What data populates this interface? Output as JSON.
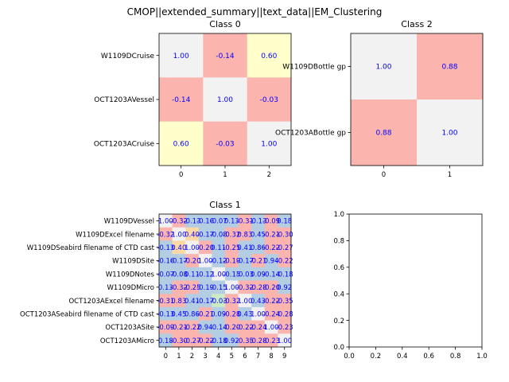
{
  "figure": {
    "suptitle": "CMOP||extended_summary||text_data||EM_Clustering"
  },
  "palette": {
    "diag": "#f2f2f2",
    "cells": {
      "B": "#b3cde3",
      "P": "#fbb4ae",
      "Y": "#ffffcc",
      "G": "#ccebc5",
      "O": "#fed9a6",
      "D": "#f2f2f2"
    },
    "value_text": "#0000ff",
    "axis": "#000000"
  },
  "chart_data": [
    {
      "type": "heatmap",
      "title": "Class 0",
      "rows": [
        "W1109DCruise",
        "OCT1203AVessel",
        "OCT1203ACruise"
      ],
      "x_ticks": [
        "0",
        "1",
        "2"
      ],
      "values": [
        [
          "1.00",
          "-0.14",
          "0.60"
        ],
        [
          "-0.14",
          "1.00",
          "-0.03"
        ],
        [
          "0.60",
          "-0.03",
          "1.00"
        ]
      ],
      "colors": [
        [
          "D",
          "P",
          "Y"
        ],
        [
          "P",
          "D",
          "P"
        ],
        [
          "Y",
          "P",
          "D"
        ]
      ]
    },
    {
      "type": "heatmap",
      "title": "Class 2",
      "rows": [
        "W1109DBottle gp",
        "OCT1203ABottle gp"
      ],
      "x_ticks": [
        "0",
        "1"
      ],
      "values": [
        [
          "1.00",
          "0.88"
        ],
        [
          "0.88",
          "1.00"
        ]
      ],
      "colors": [
        [
          "D",
          "P"
        ],
        [
          "P",
          "D"
        ]
      ]
    },
    {
      "type": "heatmap",
      "title": "Class 1",
      "rows": [
        "W1109DVessel",
        "W1109DExcel filename",
        "W1109DSeabird filename of CTD cast",
        "W1109DSite",
        "W1109DNotes",
        "W1109DMicro",
        "OCT1203AExcel filename",
        "OCT1203ASeabird filename of CTD cast",
        "OCT1203ASite",
        "OCT1203AMicro"
      ],
      "x_ticks": [
        "0",
        "1",
        "2",
        "3",
        "4",
        "5",
        "6",
        "7",
        "8",
        "9"
      ],
      "values": [
        [
          "1.00",
          "-0.32",
          "-0.13",
          "-0.16",
          "-0.07",
          "0.13",
          "-0.31",
          "-0.13",
          "-0.09",
          "0.18"
        ],
        [
          "-0.32",
          "1.00",
          "0.40",
          "-0.17",
          "-0.08",
          "-0.32",
          "0.83",
          "0.45",
          "-0.21",
          "-0.30"
        ],
        [
          "-0.13",
          "0.40",
          "1.00",
          "-0.20",
          "0.11",
          "-0.25",
          "0.41",
          "0.86",
          "-0.22",
          "-0.27"
        ],
        [
          "-0.16",
          "-0.17",
          "-0.20",
          "1.00",
          "-0.12",
          "-0.19",
          "-0.17",
          "-0.21",
          "0.94",
          "-0.22"
        ],
        [
          "-0.07",
          "-0.08",
          "0.11",
          "-0.12",
          "1.00",
          "-0.15",
          "-0.03",
          "0.09",
          "-0.14",
          "-0.18"
        ],
        [
          "0.13",
          "-0.32",
          "-0.25",
          "-0.19",
          "-0.15",
          "1.00",
          "-0.32",
          "-0.28",
          "-0.20",
          "0.92"
        ],
        [
          "-0.31",
          "0.83",
          "0.41",
          "-0.17",
          "-0.03",
          "-0.32",
          "1.00",
          "0.43",
          "-0.22",
          "-0.35"
        ],
        [
          "-0.13",
          "0.45",
          "0.86",
          "-0.21",
          "0.09",
          "-0.28",
          "0.43",
          "1.00",
          "-0.24",
          "-0.28"
        ],
        [
          "-0.09",
          "-0.21",
          "-0.22",
          "0.94",
          "-0.14",
          "-0.20",
          "-0.22",
          "-0.24",
          "1.00",
          "-0.23"
        ],
        [
          "0.18",
          "-0.30",
          "-0.27",
          "-0.22",
          "-0.18",
          "0.92",
          "-0.35",
          "-0.28",
          "-0.23",
          "1.00"
        ]
      ],
      "colors": [
        [
          "D",
          "P",
          "B",
          "B",
          "B",
          "B",
          "P",
          "B",
          "P",
          "B"
        ],
        [
          "P",
          "D",
          "O",
          "B",
          "B",
          "P",
          "P",
          "B",
          "P",
          "P"
        ],
        [
          "B",
          "O",
          "D",
          "P",
          "B",
          "P",
          "B",
          "B",
          "P",
          "P"
        ],
        [
          "B",
          "B",
          "P",
          "D",
          "B",
          "P",
          "B",
          "P",
          "B",
          "P"
        ],
        [
          "B",
          "B",
          "B",
          "B",
          "D",
          "B",
          "B",
          "B",
          "B",
          "B"
        ],
        [
          "B",
          "P",
          "P",
          "B",
          "B",
          "D",
          "P",
          "P",
          "P",
          "B"
        ],
        [
          "P",
          "P",
          "B",
          "B",
          "G",
          "P",
          "D",
          "B",
          "P",
          "P"
        ],
        [
          "B",
          "B",
          "B",
          "P",
          "B",
          "P",
          "B",
          "D",
          "P",
          "P"
        ],
        [
          "P",
          "P",
          "P",
          "B",
          "B",
          "P",
          "P",
          "P",
          "D",
          "P"
        ],
        [
          "B",
          "P",
          "P",
          "P",
          "B",
          "B",
          "P",
          "P",
          "P",
          "D"
        ]
      ]
    },
    {
      "type": "empty",
      "title": "",
      "x_ticks": [
        "0.0",
        "0.2",
        "0.4",
        "0.6",
        "0.8",
        "1.0"
      ],
      "y_ticks": [
        "0.0",
        "0.2",
        "0.4",
        "0.6",
        "0.8",
        "1.0"
      ]
    }
  ]
}
